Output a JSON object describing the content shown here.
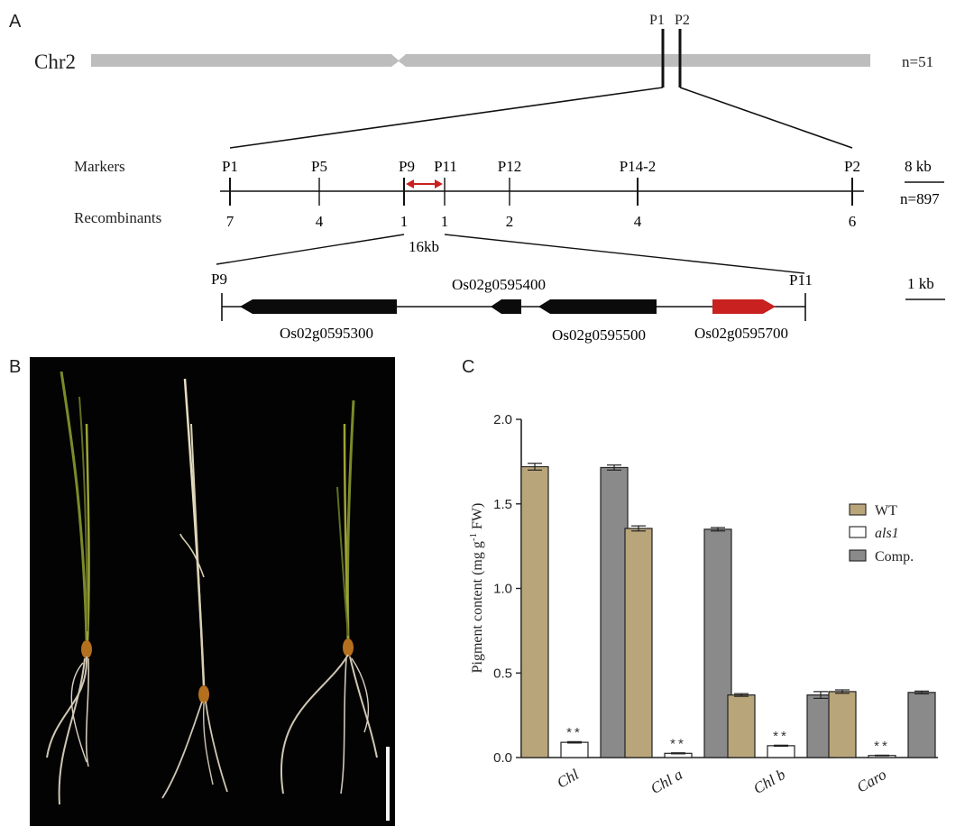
{
  "panels": {
    "a": {
      "label": "A",
      "chromosome": {
        "name": "Chr2",
        "n": "n=51",
        "markers": [
          "P1",
          "P2"
        ]
      },
      "fine_map": {
        "markers_label": "Markers",
        "recombinants_label": "Recombinants",
        "markers": [
          {
            "name": "P1",
            "recombinants": "7"
          },
          {
            "name": "P5",
            "recombinants": "4"
          },
          {
            "name": "P9",
            "recombinants": "1"
          },
          {
            "name": "P11",
            "recombinants": "1"
          },
          {
            "name": "P12",
            "recombinants": "2"
          },
          {
            "name": "P14-2",
            "recombinants": "4"
          },
          {
            "name": "P2",
            "recombinants": "6"
          }
        ],
        "scale": "8 kb",
        "n": "n=897",
        "interval": "16kb"
      },
      "gene_map": {
        "left_marker": "P9",
        "right_marker": "P11",
        "scale": "1 kb",
        "genes": [
          "Os02g0595300",
          "Os02g0595400",
          "Os02g0595500",
          "Os02g0595700"
        ],
        "candidate_color": "#c8211f"
      }
    },
    "b": {
      "label": "B"
    },
    "c": {
      "label": "C"
    }
  },
  "chart_data": {
    "type": "bar",
    "categories": [
      "Chl",
      "Chl a",
      "Chl b",
      "Caro"
    ],
    "series": [
      {
        "name": "WT",
        "values": [
          1.72,
          1.355,
          0.37,
          0.39
        ],
        "errors": [
          0.02,
          0.015,
          0.008,
          0.01
        ],
        "color": "#b8a57a"
      },
      {
        "name": "als1",
        "values": [
          0.09,
          0.025,
          0.07,
          0.012
        ],
        "errors": [
          0.004,
          0.003,
          0.003,
          0.002
        ],
        "color": "#ffffff"
      },
      {
        "name": "Comp.",
        "values": [
          1.715,
          1.35,
          0.37,
          0.385
        ],
        "errors": [
          0.015,
          0.01,
          0.02,
          0.008
        ],
        "color": "#8a8a8a"
      }
    ],
    "significance": "**",
    "ylabel": "Pigment content (mg g-1 FW)",
    "ylim": [
      0,
      2.0
    ],
    "yticks": [
      "0.0",
      "0.5",
      "1.0",
      "1.5",
      "2.0"
    ],
    "legend": "right"
  }
}
